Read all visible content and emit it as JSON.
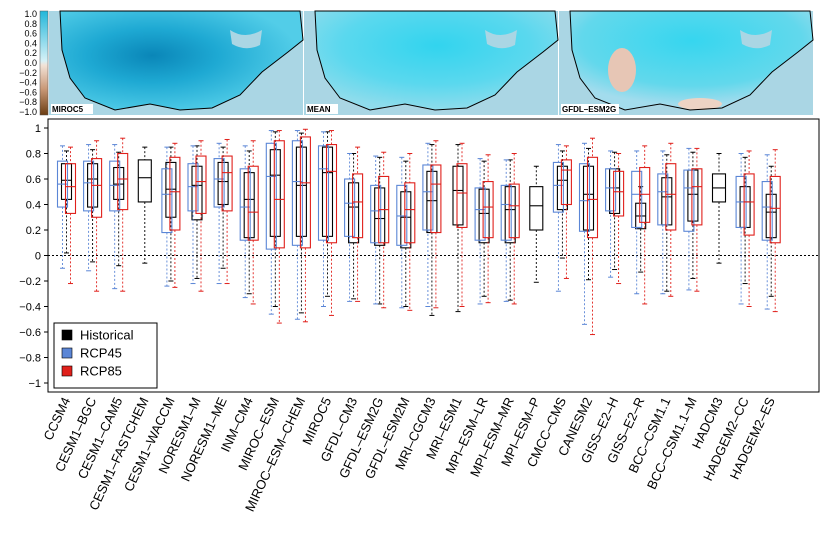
{
  "maps": {
    "colorbar_ticks": [
      "1.0",
      "0.8",
      "0.6",
      "0.4",
      "0.2",
      "0.0",
      "−0.2",
      "−0.4",
      "−0.6",
      "−0.8",
      "−1.0"
    ],
    "panels": [
      {
        "label": "MIROC5"
      },
      {
        "label": "MEAN"
      },
      {
        "label": "GFDL–ESM2G"
      }
    ]
  },
  "chart_data": {
    "type": "box",
    "ylim": [
      -1.0,
      1.0
    ],
    "yticks": [
      "1",
      "0.8",
      "0.6",
      "0.4",
      "0.2",
      "0",
      "−0.2",
      "−0.4",
      "−0.6",
      "−0.8",
      "−1"
    ],
    "legend": {
      "placement": "bottom-left",
      "entries": [
        "Historical",
        "RCP45",
        "RCP85"
      ]
    },
    "colors": {
      "Historical": "#000000",
      "RCP45": "#5b86d6",
      "RCP85": "#e0201b"
    },
    "zero_line": true,
    "models": [
      {
        "name": "CCSM4",
        "historical": [
          0.02,
          0.44,
          0.59,
          0.72,
          0.82
        ],
        "rcp45": [
          -0.1,
          0.38,
          0.56,
          0.74,
          0.86
        ],
        "rcp85": [
          -0.22,
          0.33,
          0.54,
          0.72,
          0.85
        ]
      },
      {
        "name": "CESM1–BGC",
        "historical": [
          -0.05,
          0.38,
          0.6,
          0.72,
          0.83
        ],
        "rcp45": [
          -0.12,
          0.35,
          0.57,
          0.74,
          0.87
        ],
        "rcp85": [
          -0.28,
          0.3,
          0.55,
          0.76,
          0.9
        ]
      },
      {
        "name": "CESM1–CAM5",
        "historical": [
          -0.08,
          0.44,
          0.56,
          0.69,
          0.81
        ],
        "rcp45": [
          -0.26,
          0.35,
          0.55,
          0.74,
          0.87
        ],
        "rcp85": [
          -0.28,
          0.36,
          0.6,
          0.8,
          0.92
        ]
      },
      {
        "name": "CESM1–FASTCHEM",
        "historical": [
          -0.06,
          0.42,
          0.61,
          0.75,
          0.85
        ],
        "rcp45": null,
        "rcp85": null
      },
      {
        "name": "CESM1–WACCM",
        "historical": [
          -0.2,
          0.3,
          0.52,
          0.73,
          0.85
        ],
        "rcp45": [
          -0.24,
          0.18,
          0.48,
          0.68,
          0.85
        ],
        "rcp85": [
          -0.25,
          0.2,
          0.5,
          0.77,
          0.88
        ]
      },
      {
        "name": "NORESM1–M",
        "historical": [
          -0.18,
          0.28,
          0.55,
          0.7,
          0.86
        ],
        "rcp45": [
          -0.22,
          0.35,
          0.54,
          0.72,
          0.86
        ],
        "rcp85": [
          -0.28,
          0.33,
          0.58,
          0.78,
          0.9
        ]
      },
      {
        "name": "NORESM1–ME",
        "historical": [
          -0.1,
          0.4,
          0.58,
          0.73,
          0.85
        ],
        "rcp45": [
          -0.22,
          0.38,
          0.6,
          0.76,
          0.88
        ],
        "rcp85": [
          -0.22,
          0.35,
          0.65,
          0.78,
          0.91
        ]
      },
      {
        "name": "INM–CM4",
        "historical": [
          -0.3,
          0.14,
          0.44,
          0.65,
          0.82
        ],
        "rcp45": [
          -0.33,
          0.12,
          0.38,
          0.68,
          0.86
        ],
        "rcp85": [
          -0.38,
          0.12,
          0.34,
          0.7,
          0.9
        ]
      },
      {
        "name": "MIROC–ESM",
        "historical": [
          -0.4,
          0.15,
          0.63,
          0.83,
          0.97
        ],
        "rcp45": [
          -0.46,
          0.05,
          0.62,
          0.88,
          0.98
        ],
        "rcp85": [
          -0.53,
          0.06,
          0.44,
          0.9,
          0.98
        ]
      },
      {
        "name": "MIROC–ESM–CHEM",
        "historical": [
          -0.45,
          0.15,
          0.55,
          0.85,
          0.96
        ],
        "rcp45": [
          -0.5,
          0.08,
          0.58,
          0.9,
          0.98
        ],
        "rcp85": [
          -0.52,
          0.06,
          0.57,
          0.93,
          0.99
        ]
      },
      {
        "name": "MIROC5",
        "historical": [
          -0.32,
          0.15,
          0.65,
          0.85,
          0.97
        ],
        "rcp45": [
          -0.4,
          0.12,
          0.68,
          0.86,
          0.97
        ],
        "rcp85": [
          -0.47,
          0.1,
          0.66,
          0.87,
          0.98
        ]
      },
      {
        "name": "GFDL–CM3",
        "historical": [
          -0.34,
          0.1,
          0.38,
          0.57,
          0.8
        ],
        "rcp45": [
          -0.36,
          0.15,
          0.41,
          0.6,
          0.8
        ],
        "rcp85": [
          -0.36,
          0.14,
          0.42,
          0.64,
          0.85
        ]
      },
      {
        "name": "GFDL–ESM2G",
        "historical": [
          -0.38,
          0.08,
          0.29,
          0.53,
          0.77
        ],
        "rcp45": [
          -0.38,
          0.1,
          0.35,
          0.55,
          0.78
        ],
        "rcp85": [
          -0.41,
          0.1,
          0.36,
          0.62,
          0.81
        ]
      },
      {
        "name": "GFDL–ESM2M",
        "historical": [
          -0.4,
          0.06,
          0.3,
          0.5,
          0.74
        ],
        "rcp45": [
          -0.41,
          0.08,
          0.31,
          0.55,
          0.77
        ],
        "rcp85": [
          -0.43,
          0.1,
          0.36,
          0.57,
          0.8
        ]
      },
      {
        "name": "MRI–CGCM3",
        "historical": [
          -0.47,
          0.18,
          0.43,
          0.66,
          0.87
        ],
        "rcp45": [
          -0.4,
          0.2,
          0.5,
          0.71,
          0.88
        ],
        "rcp85": [
          -0.41,
          0.18,
          0.56,
          0.71,
          0.9
        ]
      },
      {
        "name": "MRI–ESM1",
        "historical": [
          -0.44,
          0.24,
          0.51,
          0.7,
          0.87
        ],
        "rcp45": null,
        "rcp85": [
          -0.4,
          0.22,
          0.49,
          0.72,
          0.88
        ]
      },
      {
        "name": "MPI–ESM–LR",
        "historical": [
          -0.32,
          0.1,
          0.33,
          0.52,
          0.74
        ],
        "rcp45": [
          -0.38,
          0.12,
          0.36,
          0.53,
          0.76
        ],
        "rcp85": [
          -0.37,
          0.14,
          0.38,
          0.58,
          0.79
        ]
      },
      {
        "name": "MPI–ESM–MR",
        "historical": [
          -0.35,
          0.1,
          0.36,
          0.54,
          0.75
        ],
        "rcp45": [
          -0.36,
          0.12,
          0.4,
          0.55,
          0.75
        ],
        "rcp85": [
          -0.38,
          0.14,
          0.39,
          0.56,
          0.8
        ]
      },
      {
        "name": "MPI–ESM–P",
        "historical": [
          -0.21,
          0.2,
          0.39,
          0.54,
          0.7
        ],
        "rcp45": null,
        "rcp85": null
      },
      {
        "name": "CMCC–CMS",
        "historical": [
          -0.02,
          0.36,
          0.59,
          0.7,
          0.82
        ],
        "rcp45": [
          -0.28,
          0.34,
          0.55,
          0.73,
          0.87
        ],
        "rcp85": [
          -0.18,
          0.4,
          0.67,
          0.75,
          0.86
        ]
      },
      {
        "name": "CANESM2",
        "historical": [
          -0.19,
          0.2,
          0.48,
          0.7,
          0.84
        ],
        "rcp45": [
          -0.54,
          0.19,
          0.43,
          0.72,
          0.88
        ],
        "rcp85": [
          -0.62,
          0.14,
          0.44,
          0.77,
          0.92
        ]
      },
      {
        "name": "GISS–E2–H",
        "historical": [
          -0.11,
          0.33,
          0.53,
          0.68,
          0.81
        ],
        "rcp45": [
          -0.17,
          0.35,
          0.53,
          0.68,
          0.82
        ],
        "rcp85": [
          -0.22,
          0.31,
          0.5,
          0.66,
          0.8
        ]
      },
      {
        "name": "GISS–E2–R",
        "historical": [
          -0.13,
          0.21,
          0.31,
          0.41,
          0.54
        ],
        "rcp45": [
          -0.3,
          0.22,
          0.48,
          0.66,
          0.82
        ],
        "rcp85": [
          -0.38,
          0.26,
          0.48,
          0.69,
          0.86
        ]
      },
      {
        "name": "BCC–CSM1.1",
        "historical": [
          -0.28,
          0.24,
          0.46,
          0.61,
          0.79
        ],
        "rcp45": [
          -0.3,
          0.24,
          0.5,
          0.64,
          0.82
        ],
        "rcp85": [
          -0.32,
          0.2,
          0.48,
          0.72,
          0.88
        ]
      },
      {
        "name": "BCC–CSM1.1–M",
        "historical": [
          -0.18,
          0.27,
          0.48,
          0.67,
          0.81
        ],
        "rcp45": [
          -0.27,
          0.19,
          0.53,
          0.67,
          0.84
        ],
        "rcp85": [
          -0.28,
          0.24,
          0.54,
          0.68,
          0.84
        ]
      },
      {
        "name": "HADCM3",
        "historical": [
          -0.06,
          0.42,
          0.53,
          0.64,
          0.8
        ],
        "rcp45": null,
        "rcp85": null
      },
      {
        "name": "HADGEM2–CC",
        "historical": [
          -0.22,
          0.22,
          0.42,
          0.54,
          0.77
        ],
        "rcp45": [
          -0.38,
          0.22,
          0.42,
          0.62,
          0.8
        ],
        "rcp85": [
          -0.4,
          0.16,
          0.42,
          0.64,
          0.82
        ]
      },
      {
        "name": "HADGEM2–ES",
        "historical": [
          -0.32,
          0.14,
          0.34,
          0.48,
          0.7
        ],
        "rcp45": [
          -0.42,
          0.12,
          0.38,
          0.58,
          0.79
        ],
        "rcp85": [
          -0.44,
          0.1,
          0.37,
          0.62,
          0.83
        ]
      }
    ]
  }
}
